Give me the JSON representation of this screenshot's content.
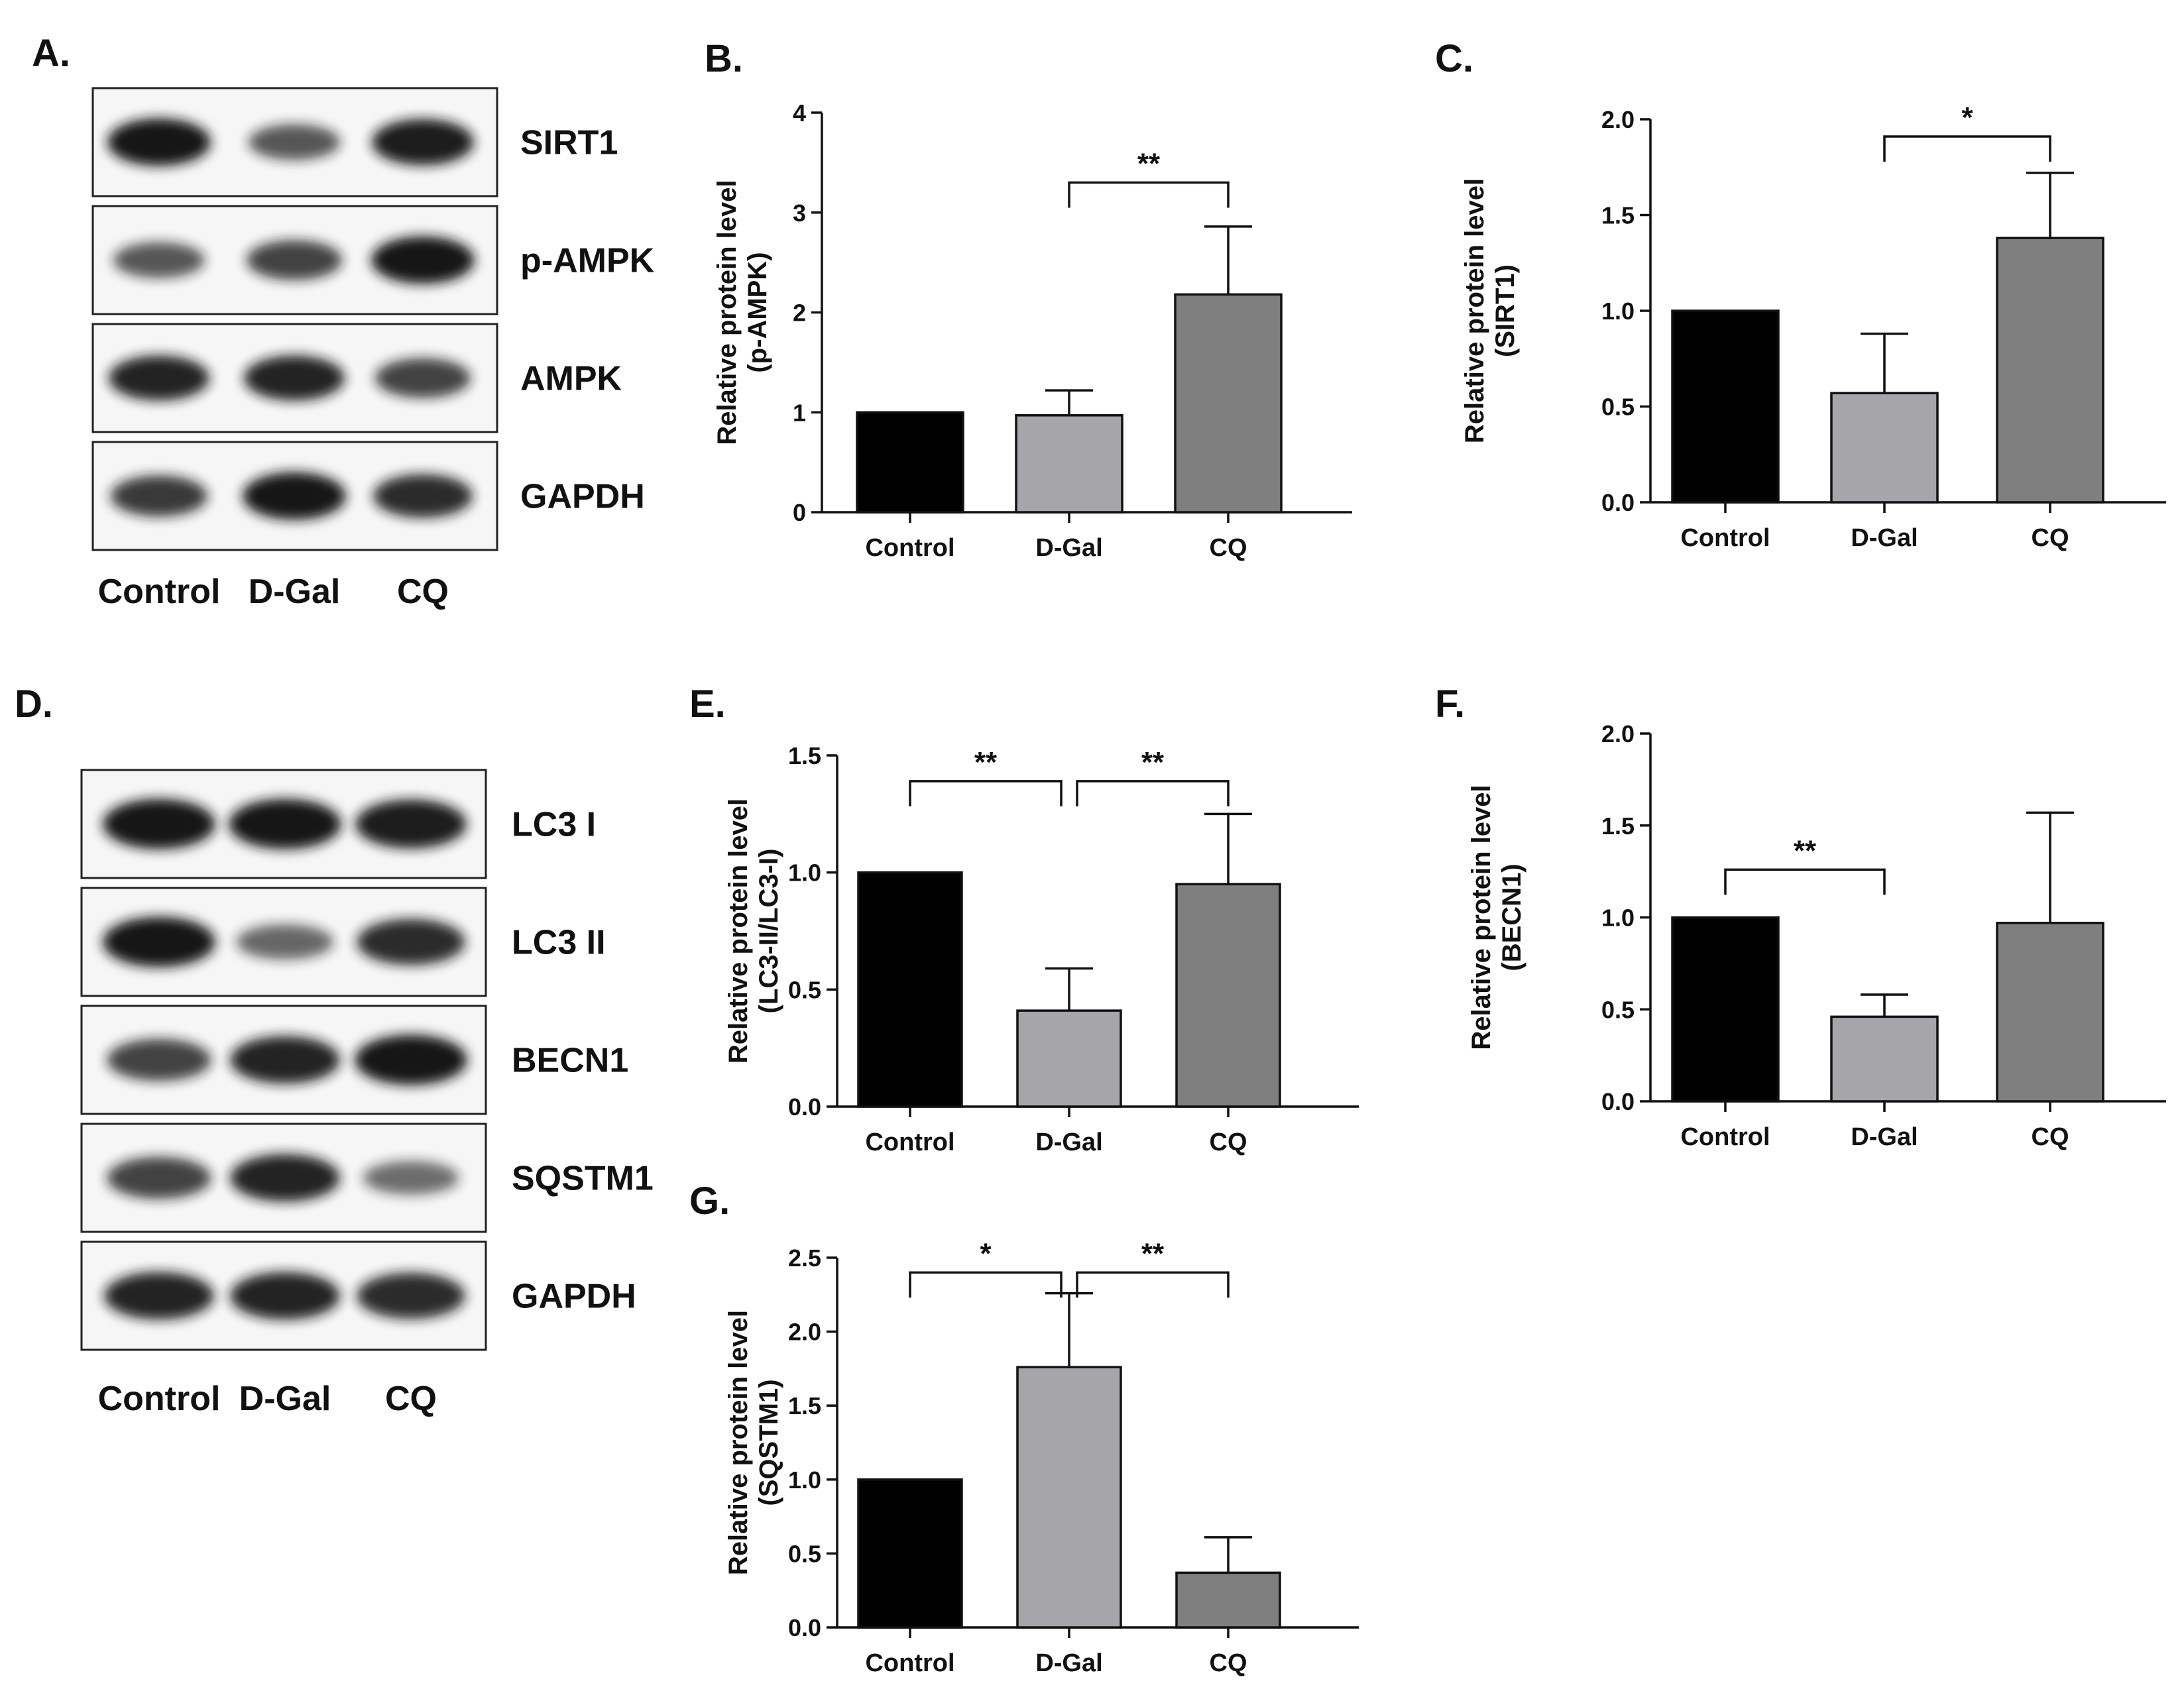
{
  "colors": {
    "control": "#000000",
    "dgal": "#a6a6aa",
    "cq": "#7f7f7f",
    "band": "#141414",
    "axis": "#111111"
  },
  "blot_a": {
    "panel_label": "A.",
    "rows": [
      {
        "label": "SIRT1",
        "intensity": [
          1.0,
          0.55,
          0.95
        ]
      },
      {
        "label": "p-AMPK",
        "intensity": [
          0.55,
          0.7,
          1.0
        ]
      },
      {
        "label": "AMPK",
        "intensity": [
          0.9,
          0.9,
          0.7
        ]
      },
      {
        "label": "GAPDH",
        "intensity": [
          0.75,
          1.0,
          0.85
        ]
      }
    ],
    "lanes": [
      "Control",
      "D-Gal",
      "CQ"
    ]
  },
  "blot_d": {
    "panel_label": "D.",
    "rows": [
      {
        "label": "LC3 I",
        "intensity": [
          1.0,
          1.0,
          0.95
        ]
      },
      {
        "label": "LC3 II",
        "intensity": [
          1.0,
          0.45,
          0.85
        ]
      },
      {
        "label": "BECN1",
        "intensity": [
          0.7,
          0.9,
          1.0
        ]
      },
      {
        "label": "SQSTM1",
        "intensity": [
          0.7,
          0.9,
          0.4
        ]
      },
      {
        "label": "GAPDH",
        "intensity": [
          0.9,
          0.9,
          0.85
        ]
      }
    ],
    "lanes": [
      "Control",
      "D-Gal",
      "CQ"
    ]
  },
  "chart_data": [
    {
      "panel_label": "B.",
      "type": "bar",
      "categories": [
        "Control",
        "D-Gal",
        "CQ"
      ],
      "values": [
        1.0,
        0.97,
        2.18
      ],
      "errors": [
        0,
        0.25,
        0.68
      ],
      "ylabel_line1": "Relative protein level",
      "ylabel_line2": "(p-AMPK)",
      "ylim": [
        0,
        4
      ],
      "yticks": [
        "0",
        "1",
        "2",
        "3",
        "4"
      ],
      "significance": [
        {
          "from": 1,
          "to": 2,
          "label": "**",
          "y": 3.3
        }
      ]
    },
    {
      "panel_label": "C.",
      "type": "bar",
      "categories": [
        "Control",
        "D-Gal",
        "CQ"
      ],
      "values": [
        1.0,
        0.57,
        1.38
      ],
      "errors": [
        0,
        0.31,
        0.34
      ],
      "ylabel_line1": "Relative protein level",
      "ylabel_line2": "(SIRT1)",
      "ylim": [
        0,
        2
      ],
      "yticks": [
        "0.0",
        "0.5",
        "1.0",
        "1.5",
        "2.0"
      ],
      "significance": [
        {
          "from": 1,
          "to": 2,
          "label": "*",
          "y": 1.91
        }
      ]
    },
    {
      "panel_label": "E.",
      "type": "bar",
      "categories": [
        "Control",
        "D-Gal",
        "CQ"
      ],
      "values": [
        1.0,
        0.41,
        0.95
      ],
      "errors": [
        0,
        0.18,
        0.3
      ],
      "ylabel_line1": "Relative protein level",
      "ylabel_line2": "(LC3-II/LC3-I)",
      "ylim": [
        0,
        1.5
      ],
      "yticks": [
        "0.0",
        "0.5",
        "1.0",
        "1.5"
      ],
      "significance": [
        {
          "from": 0,
          "to": 1,
          "label": "**",
          "y": 1.39
        },
        {
          "from": 1,
          "to": 2,
          "label": "**",
          "y": 1.39
        }
      ]
    },
    {
      "panel_label": "F.",
      "type": "bar",
      "categories": [
        "Control",
        "D-Gal",
        "CQ"
      ],
      "values": [
        1.0,
        0.46,
        0.97
      ],
      "errors": [
        0,
        0.12,
        0.6
      ],
      "ylabel_line1": "Relative protein level",
      "ylabel_line2": "(BECN1)",
      "ylim": [
        0,
        2
      ],
      "yticks": [
        "0.0",
        "0.5",
        "1.0",
        "1.5",
        "2.0"
      ],
      "significance": [
        {
          "from": 0,
          "to": 1,
          "label": "**",
          "y": 1.26
        }
      ]
    },
    {
      "panel_label": "G.",
      "type": "bar",
      "categories": [
        "Control",
        "D-Gal",
        "CQ"
      ],
      "values": [
        1.0,
        1.76,
        0.37
      ],
      "errors": [
        0,
        0.5,
        0.24
      ],
      "ylabel_line1": "Relative protein level",
      "ylabel_line2": "(SQSTM1)",
      "ylim": [
        0,
        2.5
      ],
      "yticks": [
        "0.0",
        "0.5",
        "1.0",
        "1.5",
        "2.0",
        "2.5"
      ],
      "significance": [
        {
          "from": 0,
          "to": 1,
          "label": "*",
          "y": 2.4
        },
        {
          "from": 1,
          "to": 2,
          "label": "**",
          "y": 2.4
        }
      ]
    }
  ]
}
